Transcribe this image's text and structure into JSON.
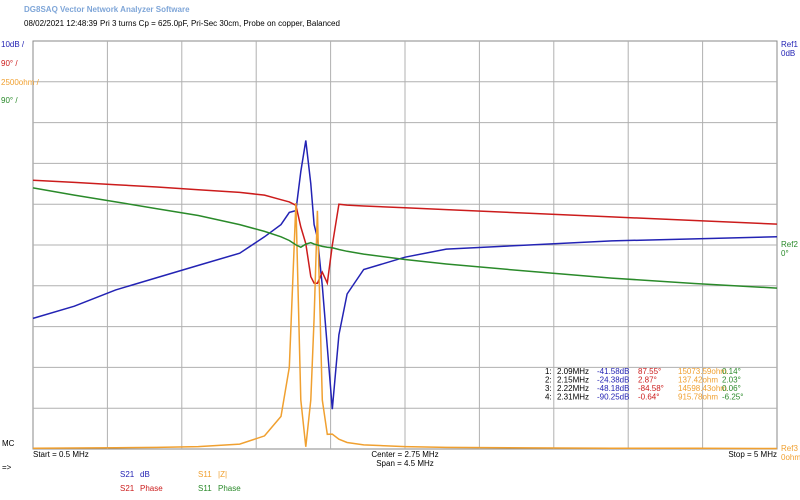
{
  "chart_data": {
    "type": "line",
    "app_title": "DG8SAQ Vector Network Analyzer Software",
    "timestamp": "08/02/2021   12:48:39",
    "title": "Pri 3 turns Cp = 625.0pF, Pri-Sec 30cm, Probe on copper, Balanced",
    "xlim": [
      0.5,
      5
    ],
    "x_labels": {
      "start": "Start = 0.5 MHz",
      "center": "Center = 2.75 MHz",
      "span": "Span = 4.5 MHz",
      "stop": "Stop = 5 MHz"
    },
    "marker_label": "MC",
    "arrow_label": "=>",
    "x": [
      0.5,
      0.75,
      1.0,
      1.25,
      1.5,
      1.75,
      1.9,
      2.0,
      2.05,
      2.09,
      2.12,
      2.15,
      2.18,
      2.2,
      2.22,
      2.25,
      2.28,
      2.31,
      2.35,
      2.4,
      2.5,
      2.75,
      3.0,
      3.5,
      4.0,
      4.5,
      5.0
    ],
    "series": [
      {
        "name": "S21",
        "format": "dB",
        "color": "#2323b4",
        "scale_label": "10dB /",
        "ref": "Ref1",
        "ref_value": "0dB",
        "ylim": [
          -100,
          0
        ],
        "values": [
          -68,
          -65,
          -61,
          -58,
          -55,
          -52,
          -48,
          -45,
          -42,
          -41.58,
          -32,
          -24.38,
          -35,
          -45,
          -48.18,
          -60,
          -75,
          -90.25,
          -72,
          -62,
          -56,
          -53,
          -51,
          -50,
          -49,
          -48.5,
          -48
        ]
      },
      {
        "name": "S21",
        "format": "Phase",
        "color": "#cc1c1c",
        "scale_label": "90° /",
        "ylim": [
          -450,
          450
        ],
        "values": [
          143,
          138,
          133,
          128,
          122,
          116,
          110,
          100,
          95,
          87.55,
          40,
          2.87,
          -70,
          -84,
          -84.58,
          -60,
          -84,
          -0.64,
          90,
          88,
          86,
          82,
          78,
          70,
          62,
          54,
          46
        ]
      },
      {
        "name": "S11",
        "format": "|Z|",
        "color": "#f0a030",
        "scale_label": "2500ohm /",
        "ref": "Ref3",
        "ref_value": "0ohm",
        "ylim": [
          0,
          25000
        ],
        "values": [
          50,
          60,
          80,
          100,
          150,
          300,
          800,
          2000,
          5000,
          15073.59,
          3000,
          137.42,
          3000,
          8000,
          14598.43,
          3000,
          900,
          915.78,
          600,
          400,
          250,
          150,
          100,
          70,
          50,
          40,
          30
        ]
      },
      {
        "name": "S11",
        "format": "Phase",
        "color": "#2a8a2a",
        "scale_label": "90° /",
        "ref": "Ref2",
        "ref_value": "0°",
        "ylim": [
          -450,
          450
        ],
        "values": [
          126,
          110,
          95,
          80,
          65,
          45,
          30,
          18,
          10,
          0.14,
          -5,
          2.03,
          5,
          2,
          0.06,
          -3,
          -5,
          -6.25,
          -10,
          -14,
          -20,
          -32,
          -42,
          -58,
          -73,
          -85,
          -95
        ]
      }
    ],
    "marker_table": [
      [
        "1:",
        "2.09MHz",
        "-41.58dB",
        "87.55°",
        "15073.59ohm",
        "0.14°"
      ],
      [
        "2:",
        "2.15MHz",
        "-24.38dB",
        "2.87°",
        "137.42ohm",
        "2.03°"
      ],
      [
        "3:",
        "2.22MHz",
        "-48.18dB",
        "-84.58°",
        "14598.43ohm",
        "0.06°"
      ],
      [
        "4:",
        "2.31MHz",
        "-90.25dB",
        "-0.64°",
        "915.78ohm",
        "-6.25°"
      ]
    ]
  }
}
